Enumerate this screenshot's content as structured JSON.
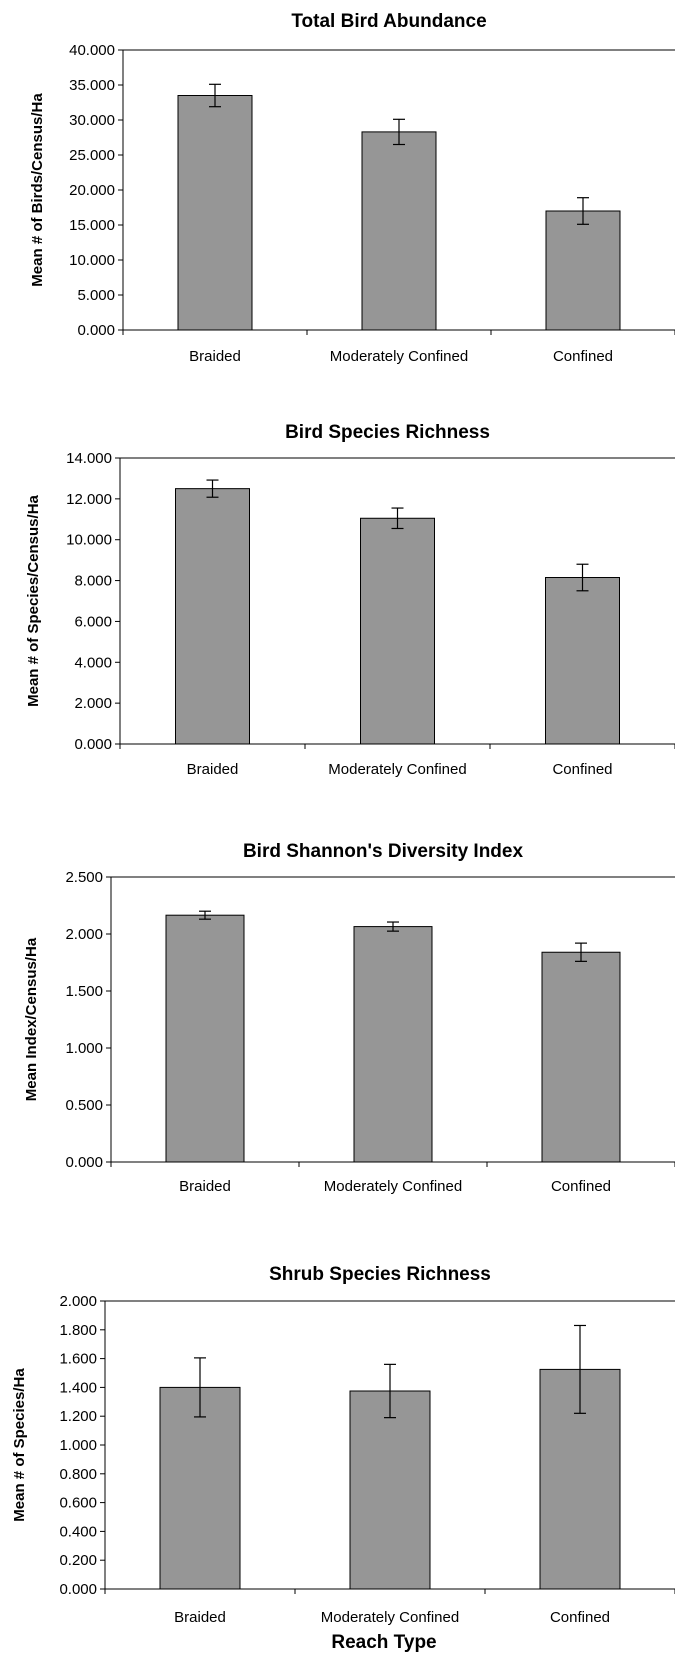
{
  "colors": {
    "bar_fill": "#969696",
    "bar_stroke": "#000000",
    "axis": "#000000"
  },
  "chart_data": [
    {
      "type": "bar",
      "title": "Total Bird Abundance",
      "ylabel": "Mean # of Birds/Census/Ha",
      "xlabel": "",
      "categories": [
        "Braided",
        "Moderately Confined",
        "Confined"
      ],
      "values": [
        33.5,
        28.3,
        17.0
      ],
      "error": [
        1.6,
        1.8,
        1.9
      ],
      "ylim": [
        0,
        40
      ],
      "yticks": [
        "0.000",
        "5.000",
        "10.000",
        "15.000",
        "20.000",
        "25.000",
        "30.000",
        "35.000",
        "40.000"
      ],
      "grid": false
    },
    {
      "type": "bar",
      "title": "Bird Species Richness",
      "ylabel": "Mean # of Species/Census/Ha",
      "xlabel": "",
      "categories": [
        "Braided",
        "Moderately Confined",
        "Confined"
      ],
      "values": [
        12.5,
        11.05,
        8.15
      ],
      "error": [
        0.42,
        0.5,
        0.65
      ],
      "ylim": [
        0,
        14
      ],
      "yticks": [
        "0.000",
        "2.000",
        "4.000",
        "6.000",
        "8.000",
        "10.000",
        "12.000",
        "14.000"
      ],
      "grid": false
    },
    {
      "type": "bar",
      "title": "Bird Shannon's Diversity Index",
      "ylabel": "Mean Index/Census/Ha",
      "xlabel": "",
      "categories": [
        "Braided",
        "Moderately Confined",
        "Confined"
      ],
      "values": [
        2.165,
        2.065,
        1.84
      ],
      "error": [
        0.035,
        0.04,
        0.08
      ],
      "ylim": [
        0,
        2.5
      ],
      "yticks": [
        "0.000",
        "0.500",
        "1.000",
        "1.500",
        "2.000",
        "2.500"
      ],
      "grid": false
    },
    {
      "type": "bar",
      "title": "Shrub Species Richness",
      "ylabel": "Mean # of Species/Ha",
      "xlabel": "Reach Type",
      "categories": [
        "Braided",
        "Moderately Confined",
        "Confined"
      ],
      "values": [
        1.4,
        1.375,
        1.525
      ],
      "error": [
        0.205,
        0.185,
        0.305
      ],
      "ylim": [
        0,
        2
      ],
      "yticks": [
        "0.000",
        "0.200",
        "0.400",
        "0.600",
        "0.800",
        "1.000",
        "1.200",
        "1.400",
        "1.600",
        "1.800",
        "2.000"
      ],
      "grid": false
    }
  ]
}
